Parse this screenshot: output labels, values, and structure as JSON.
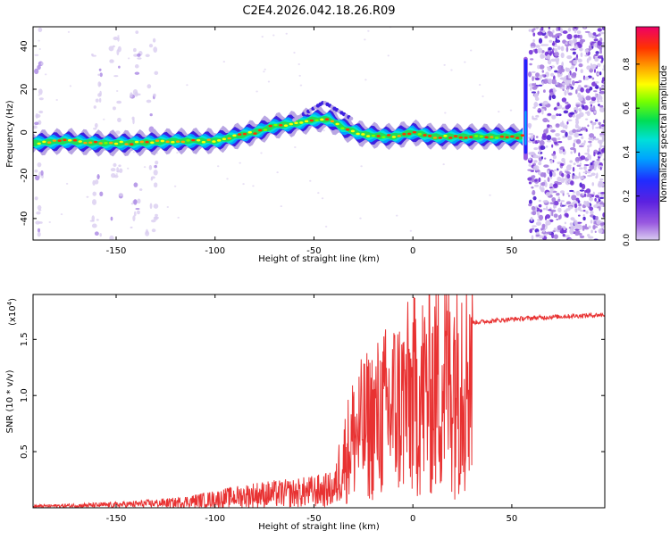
{
  "page": {
    "title": "C2E4.2026.042.18.26.R09"
  },
  "chart_data": [
    {
      "type": "heatmap",
      "xlabel": "Height of straight line (km)",
      "ylabel": "Frequency (Hz)",
      "xlim": [
        -192,
        97
      ],
      "ylim": [
        -50,
        49
      ],
      "xticks": [
        -150,
        -100,
        -50,
        0,
        50
      ],
      "yticks": [
        -40,
        -20,
        0,
        20,
        40
      ],
      "ridge": [
        {
          "x": -192,
          "y": -5
        },
        {
          "x": -175,
          "y": -4
        },
        {
          "x": -160,
          "y": -5
        },
        {
          "x": -140,
          "y": -5
        },
        {
          "x": -120,
          "y": -4
        },
        {
          "x": -100,
          "y": -4
        },
        {
          "x": -90,
          "y": -2
        },
        {
          "x": -80,
          "y": 0
        },
        {
          "x": -70,
          "y": 3
        },
        {
          "x": -60,
          "y": 4
        },
        {
          "x": -50,
          "y": 6
        },
        {
          "x": -42,
          "y": 6
        },
        {
          "x": -35,
          "y": 2
        },
        {
          "x": -25,
          "y": -1
        },
        {
          "x": -10,
          "y": -2
        },
        {
          "x": 0,
          "y": 0
        },
        {
          "x": 10,
          "y": -2
        },
        {
          "x": 30,
          "y": -2
        },
        {
          "x": 56,
          "y": -2
        }
      ],
      "colorbar": {
        "label": "Normalized spectral amplitude",
        "ticks": [
          "0.0",
          "0.2",
          "0.4",
          "0.6",
          "0.8"
        ],
        "range": [
          0,
          0.97
        ],
        "colors": [
          "#b9a6e3",
          "#7b2fd6",
          "#2222ff",
          "#0099ff",
          "#00e5e5",
          "#00dd66",
          "#66ff00",
          "#ffff00",
          "#ffa500",
          "#ff3300",
          "#ee0066"
        ]
      }
    },
    {
      "type": "line",
      "xlabel": "Height of straight line (km)",
      "ylabel": "SNR (10 * v/v)",
      "multiplier": "(x10",
      "multiplier_exp": "4",
      "multiplier_close": ")",
      "xlim": [
        -192,
        97
      ],
      "ylim": [
        0,
        1.9
      ],
      "xticks": [
        -150,
        -100,
        -50,
        0,
        50
      ],
      "yticks": [
        "0.5",
        "1.0",
        "1.5"
      ],
      "color": "#e83232",
      "envelope": [
        {
          "x": -192,
          "y": 0.02
        },
        {
          "x": -150,
          "y": 0.04
        },
        {
          "x": -120,
          "y": 0.07
        },
        {
          "x": -100,
          "y": 0.12
        },
        {
          "x": -80,
          "y": 0.18
        },
        {
          "x": -60,
          "y": 0.2
        },
        {
          "x": -40,
          "y": 0.25
        },
        {
          "x": -35,
          "y": 0.5
        },
        {
          "x": -30,
          "y": 0.75
        },
        {
          "x": -20,
          "y": 0.9
        },
        {
          "x": -10,
          "y": 1.05
        },
        {
          "x": 0,
          "y": 1.15
        },
        {
          "x": 10,
          "y": 1.25
        },
        {
          "x": 20,
          "y": 1.45
        },
        {
          "x": 30,
          "y": 1.65
        },
        {
          "x": 50,
          "y": 1.68
        },
        {
          "x": 70,
          "y": 1.7
        },
        {
          "x": 97,
          "y": 1.72
        }
      ]
    }
  ]
}
